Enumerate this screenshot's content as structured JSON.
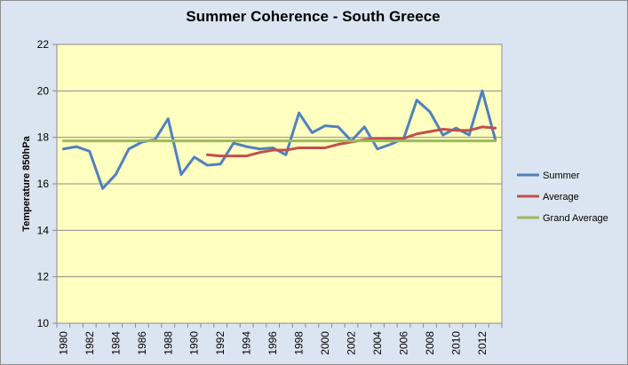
{
  "chart_data": {
    "type": "line",
    "title": "Summer Coherence - South Greece",
    "xlabel": "",
    "ylabel": "Temperature 850hPa",
    "ylim": [
      10,
      22
    ],
    "yticks": [
      10,
      12,
      14,
      16,
      18,
      20,
      22
    ],
    "x": [
      1980,
      1981,
      1982,
      1983,
      1984,
      1985,
      1986,
      1987,
      1988,
      1989,
      1990,
      1991,
      1992,
      1993,
      1994,
      1995,
      1996,
      1997,
      1998,
      1999,
      2000,
      2001,
      2002,
      2003,
      2004,
      2005,
      2006,
      2007,
      2008,
      2009,
      2010,
      2011,
      2012,
      2013
    ],
    "xtick_labels": [
      "1980",
      "1982",
      "1984",
      "1986",
      "1988",
      "1990",
      "1992",
      "1994",
      "1996",
      "1998",
      "2000",
      "2002",
      "2004",
      "2006",
      "2008",
      "2010",
      "2012"
    ],
    "grid": "horizontal",
    "legend_position": "right",
    "plot_background": "#ffffc0",
    "series": [
      {
        "name": "Summer",
        "color": "#4f81bd",
        "values": [
          17.5,
          17.6,
          17.4,
          15.8,
          16.4,
          17.5,
          17.8,
          17.9,
          18.8,
          16.4,
          17.15,
          16.8,
          16.85,
          17.75,
          17.6,
          17.5,
          17.55,
          17.25,
          19.05,
          18.2,
          18.5,
          18.45,
          17.85,
          18.45,
          17.5,
          17.7,
          17.95,
          19.6,
          19.1,
          18.1,
          18.4,
          18.1,
          20.0,
          17.9
        ]
      },
      {
        "name": "Average",
        "color": "#c0504d",
        "values": [
          null,
          null,
          null,
          null,
          null,
          null,
          null,
          null,
          null,
          null,
          null,
          17.25,
          17.2,
          17.2,
          17.2,
          17.35,
          17.45,
          17.45,
          17.55,
          17.55,
          17.55,
          17.7,
          17.8,
          17.9,
          17.95,
          17.95,
          17.95,
          18.15,
          18.25,
          18.35,
          18.3,
          18.3,
          18.45,
          18.4
        ]
      },
      {
        "name": "Grand Average",
        "color": "#9bbb59",
        "values": [
          17.85,
          17.85,
          17.85,
          17.85,
          17.85,
          17.85,
          17.85,
          17.85,
          17.85,
          17.85,
          17.85,
          17.85,
          17.85,
          17.85,
          17.85,
          17.85,
          17.85,
          17.85,
          17.85,
          17.85,
          17.85,
          17.85,
          17.85,
          17.85,
          17.85,
          17.85,
          17.85,
          17.85,
          17.85,
          17.85,
          17.85,
          17.85,
          17.85,
          17.85
        ]
      }
    ]
  }
}
